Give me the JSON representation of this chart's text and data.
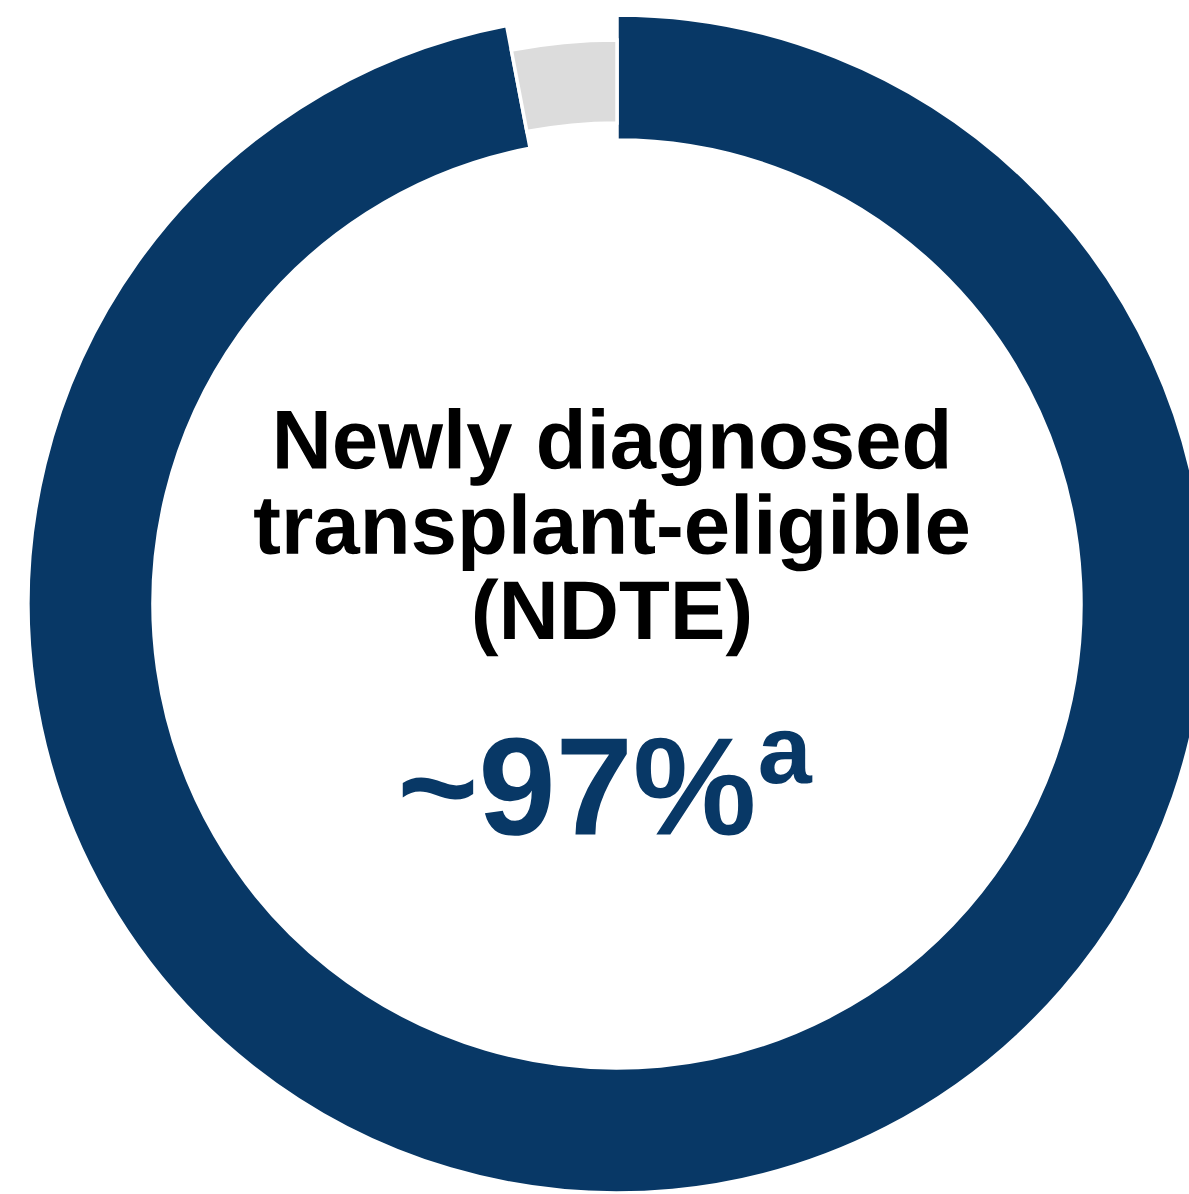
{
  "chart_data": {
    "type": "donut",
    "categories": [
      "Newly diagnosed\ntransplant-eligible\n(NDTE)",
      null
    ],
    "values": [
      97,
      3
    ],
    "colors": [
      "#083866",
      "#dcdcdc"
    ],
    "value_labels": [
      "~97%$^{a}$",
      null
    ]
  }
}
